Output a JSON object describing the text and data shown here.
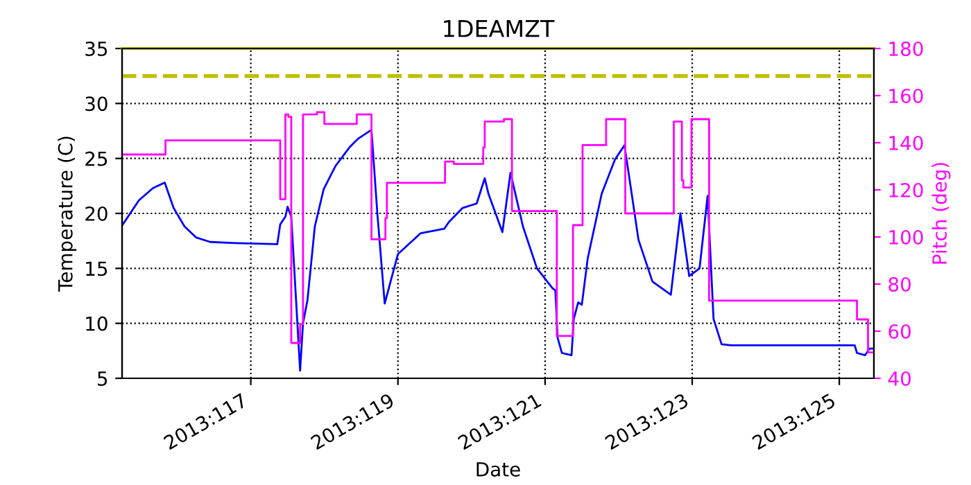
{
  "chart_data": {
    "type": "line",
    "title": "1DEAMZT",
    "xlabel": "Date",
    "ylabel": "Temperature (C)",
    "y2label": "Pitch (deg)",
    "xlim": [
      "2013-04-25T06:00",
      "2013-05-05T11:17"
    ],
    "xticks": [
      {
        "value": "2013-04-27",
        "label": "2013:117"
      },
      {
        "value": "2013-04-29",
        "label": "2013:119"
      },
      {
        "value": "2013-05-01",
        "label": "2013:121"
      },
      {
        "value": "2013-05-03",
        "label": "2013:123"
      },
      {
        "value": "2013-05-05",
        "label": "2013:125"
      }
    ],
    "ylim": [
      5,
      35
    ],
    "yticks": [
      5,
      10,
      15,
      20,
      25,
      30,
      35
    ],
    "y2lim": [
      40,
      180
    ],
    "y2ticks": [
      40,
      60,
      80,
      100,
      120,
      140,
      160,
      180
    ],
    "grid": true,
    "marker": "none",
    "series": [
      {
        "color": "#0000ff",
        "x": [
          "2013-04-25T06:00",
          "2013-04-25T11:31",
          "2013-04-25T16:05",
          "2013-04-25T19:55",
          "2013-04-25T22:48",
          "2013-04-26T02:24",
          "2013-04-26T06:14",
          "2013-04-26T10:48",
          "2013-04-26T19:12",
          "2013-04-27T08:38",
          "2013-04-27T09:36",
          "2013-04-27T11:17",
          "2013-04-27T12:00",
          "2013-04-27T13:12",
          "2013-04-27T16:05",
          "2013-04-27T17:02",
          "2013-04-27T18:29",
          "2013-04-27T20:53",
          "2013-04-27T23:46",
          "2013-04-28T03:36",
          "2013-04-28T08:10",
          "2013-04-28T11:02",
          "2013-04-28T15:22",
          "2013-04-28T17:17",
          "2013-04-28T19:41",
          "2013-04-29T00:00",
          "2013-04-29T07:26",
          "2013-04-29T15:07",
          "2013-04-29T16:34",
          "2013-04-29T21:07",
          "2013-04-30T01:41",
          "2013-04-30T04:19",
          "2013-04-30T05:31",
          "2013-04-30T10:05",
          "2013-04-30T12:43",
          "2013-04-30T16:48",
          "2013-04-30T21:22",
          "2013-05-01T02:24",
          "2013-05-01T03:22",
          "2013-05-01T04:05",
          "2013-05-01T05:31",
          "2013-05-01T08:38",
          "2013-05-01T09:22",
          "2013-05-01T10:48",
          "2013-05-01T12:00",
          "2013-05-01T13:55",
          "2013-05-01T18:29",
          "2013-05-01T22:48",
          "2013-05-02T01:55",
          "2013-05-02T06:29",
          "2013-05-02T11:02",
          "2013-05-02T17:02",
          "2013-05-02T20:10",
          "2013-05-02T23:02",
          "2013-05-03T02:24",
          "2013-05-03T05:02",
          "2013-05-03T06:58",
          "2013-05-03T09:36",
          "2013-05-03T12:43",
          "2013-05-05T05:02",
          "2013-05-05T05:46",
          "2013-05-05T08:24",
          "2013-05-05T09:50",
          "2013-05-05T11:17"
        ],
        "values": [
          18.9,
          21.2,
          22.3,
          22.8,
          20.5,
          18.8,
          17.8,
          17.4,
          17.3,
          17.2,
          19.0,
          19.7,
          20.6,
          19.7,
          5.7,
          10.0,
          12.1,
          18.8,
          22.2,
          24.3,
          26.0,
          26.8,
          27.6,
          20.0,
          11.8,
          16.3,
          18.2,
          18.6,
          19.2,
          20.5,
          20.9,
          23.2,
          21.8,
          18.3,
          23.7,
          18.8,
          15.0,
          13.2,
          13.0,
          8.7,
          7.3,
          7.1,
          10.4,
          11.9,
          11.7,
          15.9,
          21.8,
          24.9,
          26.2,
          17.6,
          13.8,
          12.6,
          20.0,
          14.3,
          15.0,
          21.6,
          10.4,
          8.1,
          8.0,
          8.0,
          7.3,
          7.1,
          7.7,
          7.7
        ]
      },
      {
        "type": "step",
        "axis": "y2",
        "color": "#ff00ff",
        "x": [
          "2013-04-25T06:00",
          "2013-04-25T20:10",
          "2013-04-27T09:36",
          "2013-04-27T11:17",
          "2013-04-27T12:14",
          "2013-04-27T13:12",
          "2013-04-27T16:05",
          "2013-04-27T17:02",
          "2013-04-27T21:36",
          "2013-04-28T00:00",
          "2013-04-28T10:34",
          "2013-04-28T15:22",
          "2013-04-28T19:55",
          "2013-04-28T20:24",
          "2013-04-29T15:22",
          "2013-04-29T18:14",
          "2013-04-30T03:50",
          "2013-04-30T04:19",
          "2013-04-30T10:34",
          "2013-04-30T13:12",
          "2013-05-01T03:50",
          "2013-05-01T09:07",
          "2013-05-01T12:14",
          "2013-05-01T19:55",
          "2013-05-02T02:10",
          "2013-05-02T18:00",
          "2013-05-02T20:38",
          "2013-05-02T21:07",
          "2013-05-02T23:46",
          "2013-05-03T05:31",
          "2013-05-05T05:46",
          "2013-05-05T09:22",
          "2013-05-05T11:17"
        ],
        "values": [
          135,
          141,
          116,
          152,
          151,
          55,
          63,
          152,
          153,
          148,
          152,
          99,
          108,
          123,
          132,
          131,
          138,
          149,
          150,
          111,
          58,
          105,
          139,
          150,
          110,
          149,
          124,
          121,
          150,
          73,
          65,
          51,
          51
        ]
      }
    ],
    "ref_lines": [
      {
        "axis": "y",
        "value": 32.5,
        "color": "#bfbf00",
        "line_style": "dashed"
      },
      {
        "axis": "y",
        "value": 35,
        "color": "#bfbf00",
        "line_style": "solid"
      }
    ]
  }
}
